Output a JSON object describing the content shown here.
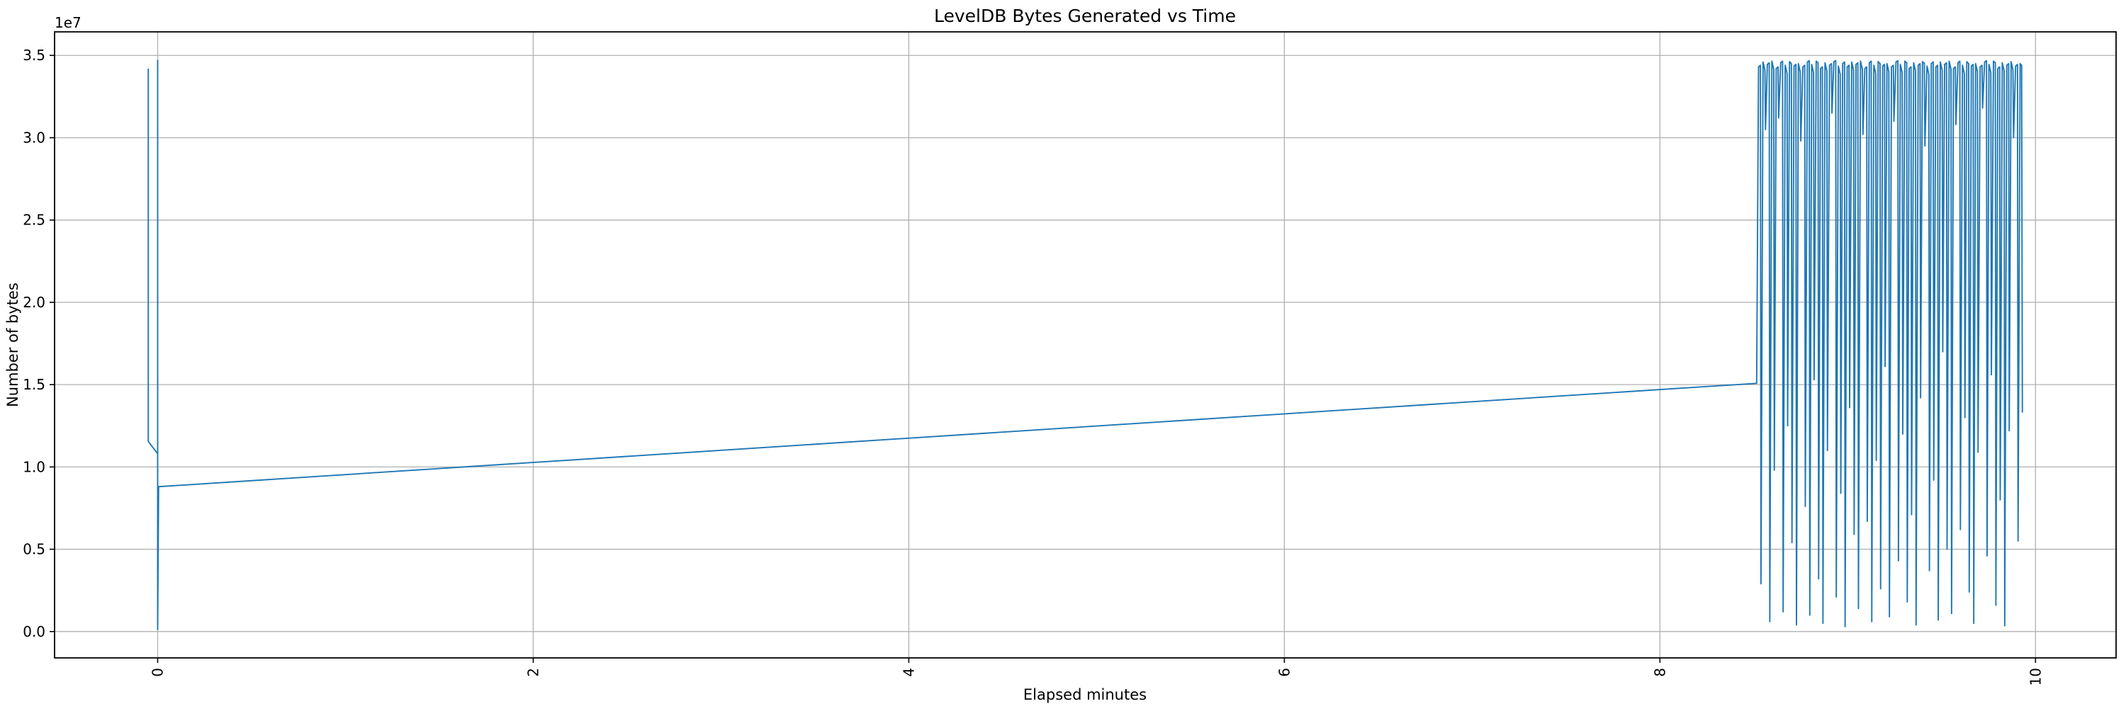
{
  "chart_data": {
    "type": "line",
    "title": "LevelDB Bytes Generated vs Time",
    "xlabel": "Elapsed minutes",
    "ylabel": "Number of bytes",
    "y_offset_text": "1e7",
    "legend": null,
    "grid": true,
    "grid_color": "#b0b0b0",
    "line_color": "#1f77b4",
    "background_color": "#ffffff",
    "xlim": [
      -0.549,
      10.429
    ],
    "ylim": [
      -1600000,
      36430000
    ],
    "xtick_values": [
      0,
      2,
      4,
      6,
      8,
      10
    ],
    "xtick_labels": [
      "0",
      "2",
      "4",
      "6",
      "8",
      "10"
    ],
    "xtick_rotation": 90,
    "ytick_values": [
      0,
      5000000,
      10000000,
      15000000,
      20000000,
      25000000,
      30000000,
      35000000
    ],
    "ytick_labels": [
      "0.0",
      "0.5",
      "1.0",
      "1.5",
      "2.0",
      "2.5",
      "3.0",
      "3.5"
    ],
    "y_unit": "bytes",
    "x_unit": "minutes",
    "points": [
      [
        -0.05,
        34200000
      ],
      [
        -0.05,
        11550000
      ],
      [
        0,
        10800000
      ],
      [
        0,
        34700000
      ],
      [
        0,
        130000
      ],
      [
        0.005,
        8800000
      ],
      [
        8.515,
        15080000
      ],
      [
        8.525,
        34300000
      ],
      [
        8.535,
        34400000
      ],
      [
        8.538,
        2900000
      ],
      [
        8.549,
        34600000
      ],
      [
        8.559,
        34100000
      ],
      [
        8.562,
        30500000
      ],
      [
        8.572,
        34450000
      ],
      [
        8.582,
        34550000
      ],
      [
        8.585,
        600000
      ],
      [
        8.596,
        34650000
      ],
      [
        8.606,
        34150000
      ],
      [
        8.609,
        9800000
      ],
      [
        8.619,
        34200000
      ],
      [
        8.629,
        34300000
      ],
      [
        8.632,
        31200000
      ],
      [
        8.643,
        34550000
      ],
      [
        8.653,
        34650000
      ],
      [
        8.656,
        1200000
      ],
      [
        8.667,
        34400000
      ],
      [
        8.677,
        33900000
      ],
      [
        8.68,
        12500000
      ],
      [
        8.69,
        34620000
      ],
      [
        8.7,
        34500000
      ],
      [
        8.703,
        5400000
      ],
      [
        8.714,
        34350000
      ],
      [
        8.724,
        34450000
      ],
      [
        8.727,
        400000
      ],
      [
        8.737,
        34500000
      ],
      [
        8.747,
        34000000
      ],
      [
        8.75,
        29800000
      ],
      [
        8.761,
        34300000
      ],
      [
        8.771,
        34400000
      ],
      [
        8.774,
        7600000
      ],
      [
        8.785,
        34600000
      ],
      [
        8.795,
        34680000
      ],
      [
        8.798,
        1000000
      ],
      [
        8.808,
        34450000
      ],
      [
        8.818,
        33950000
      ],
      [
        8.821,
        15300000
      ],
      [
        8.832,
        34650000
      ],
      [
        8.842,
        34550000
      ],
      [
        8.845,
        3200000
      ],
      [
        8.855,
        34200000
      ],
      [
        8.865,
        34300000
      ],
      [
        8.868,
        500000
      ],
      [
        8.879,
        34550000
      ],
      [
        8.889,
        34050000
      ],
      [
        8.892,
        11000000
      ],
      [
        8.903,
        34400000
      ],
      [
        8.913,
        34500000
      ],
      [
        8.916,
        31500000
      ],
      [
        8.926,
        34620000
      ],
      [
        8.936,
        34680000
      ],
      [
        8.939,
        2100000
      ],
      [
        8.95,
        34350000
      ],
      [
        8.96,
        33850000
      ],
      [
        8.963,
        8400000
      ],
      [
        8.973,
        34500000
      ],
      [
        8.983,
        34600000
      ],
      [
        8.986,
        300000
      ],
      [
        8.997,
        34300000
      ],
      [
        9.007,
        34400000
      ],
      [
        9.01,
        13600000
      ],
      [
        9.021,
        34600000
      ],
      [
        9.031,
        34100000
      ],
      [
        9.034,
        5900000
      ],
      [
        9.044,
        34450000
      ],
      [
        9.054,
        34550000
      ],
      [
        9.057,
        1400000
      ],
      [
        9.068,
        34650000
      ],
      [
        9.078,
        34150000
      ],
      [
        9.081,
        30200000
      ],
      [
        9.091,
        34200000
      ],
      [
        9.101,
        34300000
      ],
      [
        9.104,
        6700000
      ],
      [
        9.115,
        34550000
      ],
      [
        9.125,
        34650000
      ],
      [
        9.128,
        600000
      ],
      [
        9.139,
        34400000
      ],
      [
        9.149,
        33900000
      ],
      [
        9.152,
        10400000
      ],
      [
        9.162,
        34620000
      ],
      [
        9.172,
        34500000
      ],
      [
        9.175,
        2600000
      ],
      [
        9.186,
        34350000
      ],
      [
        9.196,
        34450000
      ],
      [
        9.199,
        16100000
      ],
      [
        9.209,
        34500000
      ],
      [
        9.219,
        34000000
      ],
      [
        9.222,
        900000
      ],
      [
        9.233,
        34300000
      ],
      [
        9.243,
        34400000
      ],
      [
        9.246,
        31000000
      ],
      [
        9.257,
        34600000
      ],
      [
        9.267,
        34680000
      ],
      [
        9.27,
        4300000
      ],
      [
        9.28,
        34450000
      ],
      [
        9.29,
        33950000
      ],
      [
        9.293,
        12000000
      ],
      [
        9.304,
        34650000
      ],
      [
        9.314,
        34550000
      ],
      [
        9.317,
        1800000
      ],
      [
        9.327,
        34200000
      ],
      [
        9.337,
        34300000
      ],
      [
        9.34,
        7100000
      ],
      [
        9.351,
        34550000
      ],
      [
        9.361,
        34050000
      ],
      [
        9.364,
        400000
      ],
      [
        9.375,
        34400000
      ],
      [
        9.385,
        34500000
      ],
      [
        9.388,
        14200000
      ],
      [
        9.398,
        34620000
      ],
      [
        9.408,
        34520000
      ],
      [
        9.411,
        29500000
      ],
      [
        9.422,
        34350000
      ],
      [
        9.432,
        33850000
      ],
      [
        9.435,
        3700000
      ],
      [
        9.445,
        34500000
      ],
      [
        9.455,
        34600000
      ],
      [
        9.458,
        9200000
      ],
      [
        9.469,
        34300000
      ],
      [
        9.479,
        34400000
      ],
      [
        9.482,
        700000
      ],
      [
        9.493,
        34600000
      ],
      [
        9.503,
        34100000
      ],
      [
        9.506,
        17000000
      ],
      [
        9.516,
        34450000
      ],
      [
        9.526,
        34550000
      ],
      [
        9.529,
        5000000
      ],
      [
        9.54,
        34650000
      ],
      [
        9.55,
        34150000
      ],
      [
        9.553,
        1100000
      ],
      [
        9.563,
        34200000
      ],
      [
        9.573,
        34300000
      ],
      [
        9.576,
        30800000
      ],
      [
        9.587,
        34550000
      ],
      [
        9.597,
        34650000
      ],
      [
        9.6,
        6200000
      ],
      [
        9.611,
        34400000
      ],
      [
        9.621,
        33900000
      ],
      [
        9.624,
        13000000
      ],
      [
        9.634,
        34620000
      ],
      [
        9.644,
        34500000
      ],
      [
        9.647,
        2400000
      ],
      [
        9.658,
        34350000
      ],
      [
        9.668,
        34450000
      ],
      [
        9.671,
        500000
      ],
      [
        9.681,
        34500000
      ],
      [
        9.691,
        34000000
      ],
      [
        9.694,
        10900000
      ],
      [
        9.705,
        34300000
      ],
      [
        9.715,
        34400000
      ],
      [
        9.718,
        31800000
      ],
      [
        9.729,
        34600000
      ],
      [
        9.739,
        34680000
      ],
      [
        9.742,
        4600000
      ],
      [
        9.752,
        34450000
      ],
      [
        9.762,
        33950000
      ],
      [
        9.765,
        15600000
      ],
      [
        9.776,
        34650000
      ],
      [
        9.786,
        34550000
      ],
      [
        9.789,
        1600000
      ],
      [
        9.799,
        34200000
      ],
      [
        9.809,
        34300000
      ],
      [
        9.812,
        8000000
      ],
      [
        9.823,
        34550000
      ],
      [
        9.833,
        34050000
      ],
      [
        9.836,
        350000
      ],
      [
        9.847,
        34400000
      ],
      [
        9.857,
        34500000
      ],
      [
        9.86,
        12200000
      ],
      [
        9.87,
        34620000
      ],
      [
        9.88,
        34120000
      ],
      [
        9.883,
        30000000
      ],
      [
        9.894,
        34350000
      ],
      [
        9.904,
        34450000
      ],
      [
        9.907,
        5500000
      ],
      [
        9.918,
        34500000
      ],
      [
        9.926,
        34400000
      ],
      [
        9.93,
        13300000
      ]
    ]
  }
}
